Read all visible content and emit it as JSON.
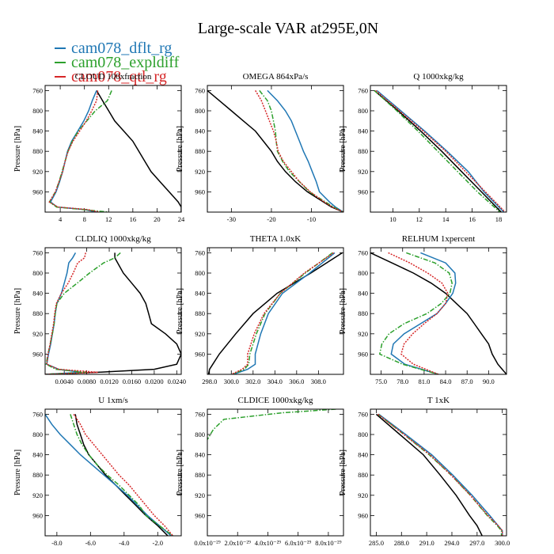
{
  "title": "Large-scale VAR at295E,0N",
  "legend": [
    {
      "label": "cam078_dflt_rg",
      "color": "#1f77b4"
    },
    {
      "label": "cam078_expldiff",
      "color": "#2ca02c"
    },
    {
      "label": "cam078_qtl_rg",
      "color": "#d62728"
    }
  ],
  "line_styles": {
    "cam078_dflt_rg": "solid",
    "cam078_expldiff": "dash-dot",
    "cam078_qtl_rg": "dotted",
    "reference": "solid"
  },
  "reference_color": "#000000",
  "chart_data": [
    {
      "type": "line",
      "title": "CLOUD 100xfraction",
      "ylabel": "Pressure [hPa]",
      "yticks": [
        "760",
        "800",
        "840",
        "880",
        "920",
        "960"
      ],
      "ylim": [
        1000,
        750
      ],
      "xlim": [
        1.5,
        24
      ],
      "xticks": [
        4,
        8,
        12,
        16,
        20,
        24
      ],
      "xticklabels": [
        "4",
        "8",
        "12",
        "16",
        "20",
        "24"
      ],
      "pressure": [
        760,
        780,
        800,
        820,
        840,
        860,
        880,
        900,
        920,
        940,
        960,
        980,
        990,
        995,
        1000
      ],
      "reference": [
        10,
        11,
        12,
        13,
        14.5,
        16,
        17,
        18,
        19,
        20.5,
        22,
        23.5,
        24,
        24,
        24
      ],
      "series": [
        {
          "name": "cam078_dflt_rg",
          "values": [
            10,
            9.3,
            8.7,
            7.9,
            6.9,
            5.9,
            5.2,
            4.8,
            4.4,
            3.9,
            3.3,
            2.4,
            3.5,
            8,
            10
          ]
        },
        {
          "name": "cam078_expldiff",
          "values": [
            12.5,
            11.8,
            9.8,
            8.4,
            7,
            6,
            5.3,
            4.8,
            4.3,
            3.8,
            3.2,
            2.2,
            3.4,
            7.8,
            12
          ]
        },
        {
          "name": "cam078_qtl_rg",
          "values": [
            10.2,
            10,
            9.2,
            8.3,
            7.2,
            6.1,
            5.3,
            4.8,
            4.4,
            3.8,
            3.2,
            2.2,
            3.6,
            8.5,
            10.5
          ]
        }
      ]
    },
    {
      "type": "line",
      "title": "OMEGA 864xPa/s",
      "ylabel": "Pressure [hPa]",
      "yticks": [
        "760",
        "800",
        "840",
        "880",
        "920",
        "960"
      ],
      "ylim": [
        1000,
        750
      ],
      "xlim": [
        -36,
        -2
      ],
      "xticks": [
        -30,
        -20,
        -10
      ],
      "xticklabels": [
        "-30",
        "-20",
        "-10"
      ],
      "pressure": [
        760,
        780,
        800,
        820,
        840,
        860,
        880,
        900,
        920,
        940,
        960,
        980,
        990,
        1000
      ],
      "reference": [
        -36,
        -33,
        -30,
        -27,
        -24,
        -22,
        -20,
        -18.5,
        -16.5,
        -14,
        -11,
        -7,
        -5,
        -2
      ],
      "series": [
        {
          "name": "cam078_dflt_rg",
          "values": [
            -21,
            -18.5,
            -16.5,
            -15,
            -14,
            -13,
            -12,
            -10.8,
            -9.8,
            -8.8,
            -8,
            -5.5,
            -4,
            -2
          ]
        },
        {
          "name": "cam078_expldiff",
          "values": [
            -23,
            -21,
            -20,
            -19.5,
            -19,
            -18.8,
            -18.5,
            -17.2,
            -15.5,
            -13,
            -10.5,
            -6.5,
            -4.5,
            -2
          ]
        },
        {
          "name": "cam078_qtl_rg",
          "values": [
            -24,
            -22.5,
            -21.5,
            -20.5,
            -19.5,
            -18.8,
            -18.3,
            -17,
            -15,
            -13,
            -10.3,
            -6.8,
            -4.8,
            -2
          ]
        }
      ]
    },
    {
      "type": "line",
      "title": "Q 1000xkg/kg",
      "ylabel": "Pressure [hPa]",
      "yticks": [
        "760",
        "800",
        "840",
        "880",
        "920",
        "960"
      ],
      "ylim": [
        1000,
        750
      ],
      "xlim": [
        8.3,
        18.6
      ],
      "xticks": [
        10,
        12,
        14,
        16,
        18
      ],
      "xticklabels": [
        "10",
        "12",
        "14",
        "16",
        "18"
      ],
      "pressure": [
        760,
        800,
        840,
        880,
        920,
        960,
        1000
      ],
      "reference": [
        8.6,
        10.4,
        12.1,
        13.7,
        15.2,
        16.7,
        18.2
      ],
      "series": [
        {
          "name": "cam078_dflt_rg",
          "values": [
            8.8,
            10.6,
            12.4,
            14.1,
            15.7,
            16.9,
            18.4
          ]
        },
        {
          "name": "cam078_expldiff",
          "values": [
            8.6,
            10.3,
            11.9,
            13.4,
            14.9,
            16.4,
            18.1
          ]
        },
        {
          "name": "cam078_qtl_rg",
          "values": [
            8.7,
            10.5,
            12.3,
            14,
            15.5,
            17,
            18.5
          ]
        }
      ]
    },
    {
      "type": "line",
      "title": "CLDLIQ 1000xkg/kg",
      "ylabel": "Pressure [hPa]",
      "yticks": [
        "760",
        "800",
        "840",
        "880",
        "920",
        "960"
      ],
      "ylim": [
        1000,
        750
      ],
      "xlim": [
        0.0006,
        0.0248
      ],
      "xticks": [
        0.004,
        0.008,
        0.012,
        0.016,
        0.02,
        0.024
      ],
      "xticklabels": [
        "0.0040",
        "0.0080",
        "0.0120",
        "0.0160",
        "0.0200",
        "0.0240"
      ],
      "pressure": [
        760,
        770,
        780,
        800,
        820,
        840,
        860,
        880,
        900,
        920,
        940,
        960,
        980,
        990,
        996,
        1000
      ],
      "reference": [
        0.013,
        0.013,
        0.0135,
        0.0145,
        0.016,
        0.0175,
        0.0185,
        0.019,
        0.0195,
        0.022,
        0.024,
        0.0248,
        0.024,
        0.02,
        0.01,
        0.0006
      ],
      "series": [
        {
          "name": "cam078_dflt_rg",
          "values": [
            0.006,
            0.0055,
            0.0048,
            0.0045,
            0.004,
            0.0035,
            0.0027,
            0.0024,
            0.0022,
            0.0019,
            0.0016,
            0.0012,
            0.0009,
            0.003,
            0.007,
            0.0006
          ]
        },
        {
          "name": "cam078_expldiff",
          "values": [
            0.014,
            0.013,
            0.011,
            0.0085,
            0.0063,
            0.004,
            0.0027,
            0.0024,
            0.0022,
            0.0019,
            0.0015,
            0.0011,
            0.0008,
            0.0025,
            0.008,
            0.0006
          ]
        },
        {
          "name": "cam078_qtl_rg",
          "values": [
            0.0078,
            0.0076,
            0.0064,
            0.0056,
            0.0047,
            0.0035,
            0.0026,
            0.0023,
            0.0021,
            0.0018,
            0.0015,
            0.0011,
            0.0009,
            0.003,
            0.01,
            0.0006
          ]
        }
      ]
    },
    {
      "type": "line",
      "title": "THETA 1.0xK",
      "ylabel": "Pressure [hPa]",
      "yticks": [
        "760",
        "800",
        "840",
        "880",
        "920",
        "960"
      ],
      "ylim": [
        1000,
        750
      ],
      "xlim": [
        297.8,
        310.3
      ],
      "xticks": [
        298,
        300,
        302,
        304,
        306,
        308
      ],
      "xticklabels": [
        "298.0",
        "300.0",
        "302.0",
        "304.0",
        "306.0",
        "308.0"
      ],
      "pressure": [
        760,
        800,
        840,
        880,
        920,
        960,
        980,
        990,
        1000
      ],
      "reference": [
        310.2,
        307.3,
        304.2,
        302,
        300.4,
        298.9,
        298.3,
        298,
        297.9
      ],
      "series": [
        {
          "name": "cam078_dflt_rg",
          "values": [
            309.5,
            307.2,
            304.7,
            303.4,
            302.7,
            302.2,
            302.2,
            301.5,
            300.2
          ]
        },
        {
          "name": "cam078_expldiff",
          "values": [
            309.3,
            306.8,
            304.5,
            303.1,
            302.3,
            301.7,
            301.6,
            301.2,
            300.1
          ]
        },
        {
          "name": "cam078_qtl_rg",
          "values": [
            309.4,
            306.7,
            304.5,
            303,
            302.1,
            301.5,
            301.5,
            301,
            300
          ]
        }
      ]
    },
    {
      "type": "line",
      "title": "RELHUM 1xpercent",
      "ylabel": "Pressure [hPa]",
      "yticks": [
        "760",
        "800",
        "840",
        "880",
        "920",
        "960"
      ],
      "ylim": [
        1000,
        750
      ],
      "xlim": [
        73.5,
        92.5
      ],
      "xticks": [
        75,
        78,
        81,
        84,
        87,
        90
      ],
      "xticklabels": [
        "75.0",
        "78.0",
        "81.0",
        "84.0",
        "87.0",
        "90.0"
      ],
      "pressure": [
        760,
        780,
        800,
        820,
        840,
        860,
        880,
        900,
        920,
        940,
        960,
        980,
        1000
      ],
      "reference": [
        73.5,
        76.5,
        79.5,
        82,
        84,
        85.5,
        87,
        88,
        89,
        90,
        90.5,
        91.3,
        92.5
      ],
      "series": [
        {
          "name": "cam078_dflt_rg",
          "values": [
            80.5,
            84,
            85.3,
            85.4,
            85,
            84,
            82.8,
            80.5,
            78.2,
            76.7,
            76.4,
            78.3,
            83
          ]
        },
        {
          "name": "cam078_expldiff",
          "values": [
            78.5,
            82.5,
            84.5,
            84.9,
            84.6,
            83.4,
            81.4,
            78.2,
            76.1,
            75.1,
            74.8,
            78,
            83
          ]
        },
        {
          "name": "cam078_qtl_rg",
          "values": [
            76,
            79,
            81.5,
            83.5,
            84.3,
            84,
            82.8,
            81,
            79.4,
            78.2,
            77.8,
            79.5,
            83
          ]
        }
      ]
    },
    {
      "type": "line",
      "title": "U 1xm/s",
      "ylabel": "Pressure [hPa]",
      "yticks": [
        "760",
        "800",
        "840",
        "880",
        "920",
        "960"
      ],
      "ylim": [
        1000,
        750
      ],
      "xlim": [
        -8.7,
        -0.6
      ],
      "xticks": [
        -8,
        -6,
        -4,
        -2
      ],
      "xticklabels": [
        "-8.0",
        "-6.0",
        "-4.0",
        "-2.0"
      ],
      "pressure": [
        760,
        780,
        800,
        820,
        840,
        860,
        880,
        900,
        920,
        940,
        960,
        980,
        1000
      ],
      "reference": [
        -6.9,
        -6.8,
        -6.6,
        -6.4,
        -6.1,
        -5.6,
        -5.1,
        -4.5,
        -3.9,
        -3.3,
        -2.7,
        -2,
        -1.4
      ],
      "series": [
        {
          "name": "cam078_dflt_rg",
          "values": [
            -8.7,
            -8.3,
            -7.8,
            -7.2,
            -6.6,
            -5.9,
            -5.2,
            -4.5,
            -3.8,
            -3.2,
            -2.6,
            -1.9,
            -1.2
          ]
        },
        {
          "name": "cam078_expldiff",
          "values": [
            -7.2,
            -7,
            -6.8,
            -6.5,
            -6.1,
            -5.6,
            -5,
            -4.3,
            -3.7,
            -3.1,
            -2.7,
            -1.9,
            -1.1
          ]
        },
        {
          "name": "cam078_qtl_rg",
          "values": [
            -7,
            -6.6,
            -6.3,
            -5.8,
            -5.3,
            -4.8,
            -4.3,
            -3.7,
            -3.2,
            -2.7,
            -2.2,
            -1.6,
            -1.1
          ]
        }
      ]
    },
    {
      "type": "line",
      "title": "CLDICE 1000xkg/kg",
      "ylabel": "Pressure [hPa]",
      "yticks": [
        "760",
        "800",
        "840",
        "880",
        "920",
        "960"
      ],
      "ylim": [
        1000,
        750
      ],
      "xlim": [
        0,
        9
      ],
      "xticks": [
        0,
        2,
        4,
        6,
        8
      ],
      "xticklabels": [
        "0.0x10⁻²⁹",
        "2.0x10⁻²⁹",
        "4.0x10⁻²⁹",
        "6.0x10⁻²⁹",
        "8.0x10⁻²⁹"
      ],
      "xunit_note": "tick values x10^-29",
      "pressure": [
        750,
        757,
        770,
        790,
        810
      ],
      "reference": [],
      "series": [
        {
          "name": "cam078_dflt_rg",
          "values": []
        },
        {
          "name": "cam078_expldiff",
          "values": [
            8.5,
            5,
            1.1,
            0.4,
            0
          ]
        },
        {
          "name": "cam078_qtl_rg",
          "values": []
        }
      ]
    },
    {
      "type": "line",
      "title": "T 1xK",
      "ylabel": "Pressure [hPa]",
      "yticks": [
        "760",
        "800",
        "840",
        "880",
        "920",
        "960"
      ],
      "ylim": [
        1000,
        750
      ],
      "xlim": [
        284.3,
        300.5
      ],
      "xticks": [
        285,
        288,
        291,
        294,
        297,
        300
      ],
      "xticklabels": [
        "285.0",
        "288.0",
        "291.0",
        "294.0",
        "297.0",
        "300.0"
      ],
      "pressure": [
        760,
        800,
        840,
        880,
        920,
        960,
        980,
        990,
        1000
      ],
      "reference": [
        285,
        287.8,
        290.6,
        292.6,
        294.5,
        296.1,
        297,
        297.3,
        297.6
      ],
      "series": [
        {
          "name": "cam078_dflt_rg",
          "values": [
            285.3,
            288.5,
            291.6,
            294.1,
            296.4,
            298.5,
            299.5,
            300,
            300
          ]
        },
        {
          "name": "cam078_expldiff",
          "values": [
            285.2,
            288.3,
            291.3,
            293.9,
            296.2,
            298.2,
            299.4,
            299.9,
            299.9
          ]
        },
        {
          "name": "cam078_qtl_rg",
          "values": [
            285.2,
            288.3,
            291.4,
            293.9,
            296.2,
            298.3,
            299.5,
            300,
            300
          ]
        }
      ]
    }
  ]
}
